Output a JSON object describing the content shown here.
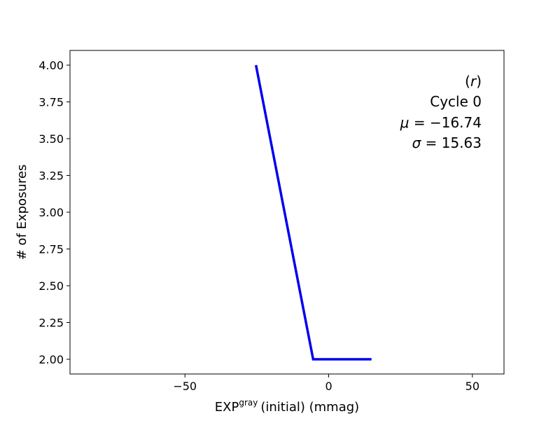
{
  "chart_data": {
    "type": "line",
    "xlabel": {
      "main": "EXP",
      "superscript": "gray",
      "rest": "(initial) (mmag)"
    },
    "ylabel": "# of Exposures",
    "xlim": [
      -90,
      61
    ],
    "ylim": [
      1.9,
      4.1
    ],
    "x_ticks": [
      -50,
      0,
      50
    ],
    "x_tick_labels": [
      "−50",
      "0",
      "50"
    ],
    "y_ticks": [
      2.0,
      2.25,
      2.5,
      2.75,
      3.0,
      3.25,
      3.5,
      3.75,
      4.0
    ],
    "y_tick_labels": [
      "2.00",
      "2.25",
      "2.50",
      "2.75",
      "3.00",
      "3.25",
      "3.50",
      "3.75",
      "4.00"
    ],
    "grid": false,
    "series": [
      {
        "color": "#0000ee",
        "x": [
          -25.3,
          -5.4,
          14.9
        ],
        "y": [
          4.0,
          2.0,
          2.0
        ]
      }
    ],
    "annotation": {
      "position": "top-right",
      "lines": [
        {
          "italic": "r",
          "prefix": "(",
          "suffix": ")"
        },
        {
          "text": "Cycle 0"
        },
        {
          "symbol": "μ",
          "value": "= −16.74"
        },
        {
          "symbol": "σ",
          "value": "= 15.63"
        }
      ]
    }
  }
}
